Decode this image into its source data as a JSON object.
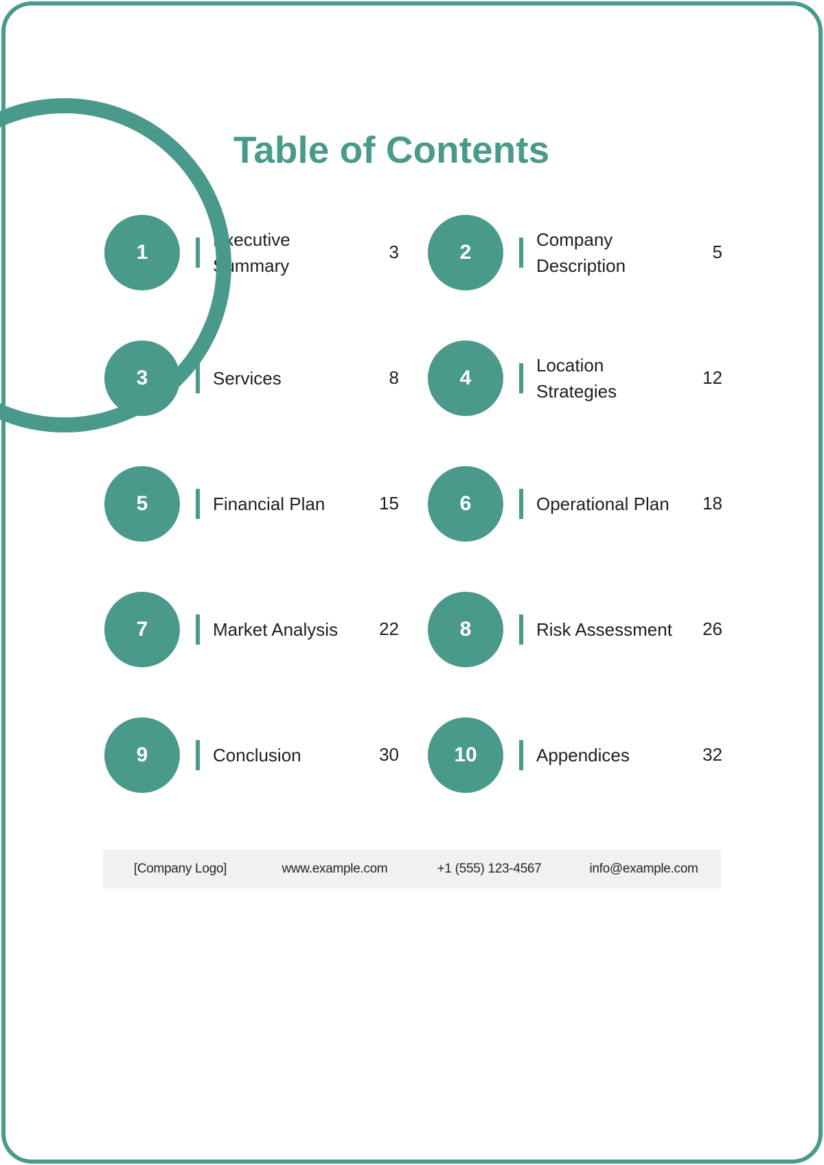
{
  "colors": {
    "accent": "#4a9a8c",
    "footer_background": "#f1f1f1",
    "text": "#1e1e1e"
  },
  "title": "Table of Contents",
  "toc": {
    "items": [
      {
        "number": "1",
        "label": "Executive Summary",
        "page": "3"
      },
      {
        "number": "2",
        "label": "Company Description",
        "page": "5"
      },
      {
        "number": "3",
        "label": "Services",
        "page": "8"
      },
      {
        "number": "4",
        "label": "Location Strategies",
        "page": "12"
      },
      {
        "number": "5",
        "label": "Financial Plan",
        "page": "15"
      },
      {
        "number": "6",
        "label": "Operational Plan",
        "page": "18"
      },
      {
        "number": "7",
        "label": "Market Analysis",
        "page": "22"
      },
      {
        "number": "8",
        "label": "Risk Assessment",
        "page": "26"
      },
      {
        "number": "9",
        "label": "Conclusion",
        "page": "30"
      },
      {
        "number": "10",
        "label": "Appendices",
        "page": "32"
      }
    ]
  },
  "footer": {
    "company_logo": "[Company Logo]",
    "website": "www.example.com",
    "phone": "+1 (555) 123-4567",
    "email": "info@example.com"
  }
}
